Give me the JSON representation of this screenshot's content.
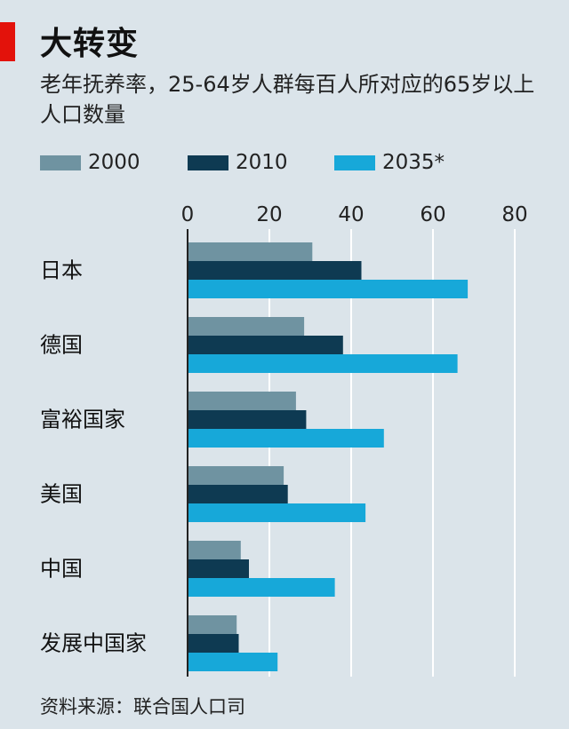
{
  "title": "大转变",
  "subtitle": "老年抚养率，25-64岁人群每百人所对应的65岁以上人口数量",
  "source": "资料来源：联合国人口司",
  "colors": {
    "accent": "#e3120b",
    "background": "#dbe4ea",
    "grid": "#ffffff",
    "s2000": "#6f93a1",
    "s2010": "#0e3a52",
    "s2035": "#17a8d9"
  },
  "chart_data": {
    "type": "bar",
    "orientation": "horizontal",
    "categories": [
      "日本",
      "德国",
      "富裕国家",
      "美国",
      "中国",
      "发展中国家"
    ],
    "series": [
      {
        "name": "2000",
        "values": [
          30.5,
          28.5,
          26.5,
          23.5,
          13,
          12
        ]
      },
      {
        "name": "2010",
        "values": [
          42.5,
          38,
          29,
          24.5,
          15,
          12.5
        ]
      },
      {
        "name": "2035*",
        "values": [
          68.5,
          66,
          48,
          43.5,
          36,
          22
        ]
      }
    ],
    "xlim": [
      0,
      80
    ],
    "xticks": [
      "0",
      "20",
      "40",
      "60",
      "80"
    ],
    "grid": true,
    "legend_position": "top-left"
  }
}
